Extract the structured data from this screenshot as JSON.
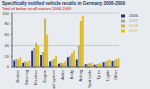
{
  "chart_data": {
    "type": "bar",
    "title": "Specifically notified vehicle recalls in Germany 2006-2009",
    "subtitle": "Total of below recall notices 2006-2009",
    "categories": [
      "Brakes",
      "Steering",
      "Electrics",
      "Engine",
      "Fuel system",
      "Axles",
      "Body",
      "Airbag",
      "Seat belts",
      "Tyres",
      "Lights",
      "Other"
    ],
    "series": [
      {
        "name": "2006",
        "color": "#1f3864",
        "values": [
          12,
          8,
          30,
          22,
          10,
          6,
          18,
          14,
          5,
          4,
          9,
          11
        ]
      },
      {
        "name": "2007",
        "color": "#a6a6a6",
        "values": [
          15,
          10,
          35,
          28,
          12,
          8,
          20,
          40,
          6,
          5,
          10,
          13
        ]
      },
      {
        "name": "2008",
        "color": "#c9b458",
        "values": [
          14,
          9,
          45,
          90,
          15,
          7,
          25,
          85,
          7,
          6,
          12,
          15
        ]
      },
      {
        "name": "2009",
        "color": "#f0c000",
        "values": [
          18,
          12,
          40,
          60,
          20,
          10,
          30,
          95,
          8,
          7,
          14,
          16
        ]
      }
    ],
    "ylim": [
      0,
      100
    ],
    "yticks": [
      0,
      20,
      40,
      60,
      80,
      100
    ],
    "grid": true,
    "legend": "right"
  }
}
